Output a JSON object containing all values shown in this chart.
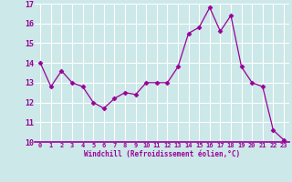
{
  "x": [
    0,
    1,
    2,
    3,
    4,
    5,
    6,
    7,
    8,
    9,
    10,
    11,
    12,
    13,
    14,
    15,
    16,
    17,
    18,
    19,
    20,
    21,
    22,
    23
  ],
  "y": [
    14.0,
    12.8,
    13.6,
    13.0,
    12.8,
    12.0,
    11.7,
    12.2,
    12.5,
    12.4,
    13.0,
    13.0,
    13.0,
    13.8,
    15.5,
    15.8,
    16.8,
    15.6,
    16.4,
    13.8,
    13.0,
    12.8,
    10.6,
    10.1
  ],
  "line_color": "#990099",
  "marker": "D",
  "marker_size": 2.5,
  "bg_color": "#cce8e8",
  "grid_color": "#ffffff",
  "xlabel": "Windchill (Refroidissement éolien,°C)",
  "xlabel_color": "#990099",
  "tick_color": "#990099",
  "ylim": [
    10,
    17
  ],
  "xlim": [
    -0.5,
    23.5
  ],
  "yticks": [
    10,
    11,
    12,
    13,
    14,
    15,
    16,
    17
  ],
  "xticks": [
    0,
    1,
    2,
    3,
    4,
    5,
    6,
    7,
    8,
    9,
    10,
    11,
    12,
    13,
    14,
    15,
    16,
    17,
    18,
    19,
    20,
    21,
    22,
    23
  ]
}
